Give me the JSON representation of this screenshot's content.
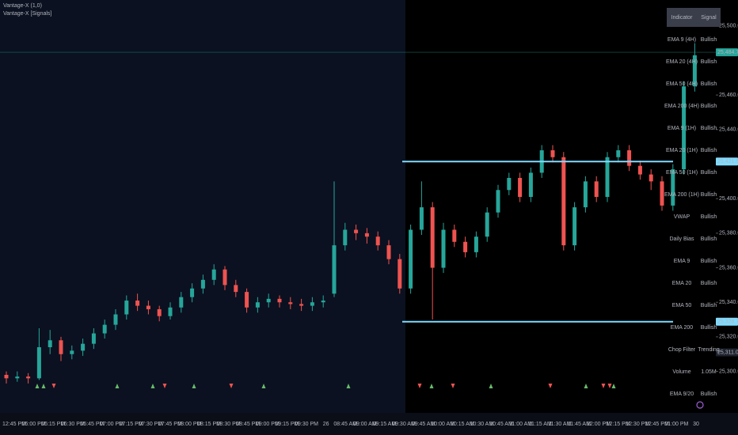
{
  "chart_data": {
    "type": "candlestick",
    "indicator_labels": [
      "Vantage-X (1,0)",
      "Vantage-X [Signals]"
    ],
    "up_color": "#26a69a",
    "down_color": "#ef5350",
    "ylim": [
      25276,
      25515
    ],
    "yticks": [
      {
        "value": 25300,
        "label": "25,300.00"
      },
      {
        "value": 25320,
        "label": "25,320.00"
      },
      {
        "value": 25340,
        "label": "25,340.00"
      },
      {
        "value": 25360,
        "label": "25,360.00"
      },
      {
        "value": 25380,
        "label": "25,380.00"
      },
      {
        "value": 25400,
        "label": "25,400.00"
      },
      {
        "value": 25440,
        "label": "25,440.00"
      },
      {
        "value": 25460,
        "label": "25,460.00"
      },
      {
        "value": 25500,
        "label": "25,500.00"
      }
    ],
    "levels": [
      {
        "value": 25484.75,
        "label": "25,484.75",
        "color": "#26a69a",
        "line": "thin"
      },
      {
        "value": 25421.5,
        "label": "25,421.50",
        "color": "#7fdbff",
        "line": "thick"
      },
      {
        "value": 25328.75,
        "label": "25,328.75",
        "color": "#7fdbff",
        "line": "thick"
      },
      {
        "value": 25311,
        "label": "25,311.00",
        "color": "#1e222d",
        "line": "none"
      }
    ],
    "time_labels": [
      "12:45 PM",
      "06:00 PM",
      "06:15 PM",
      "06:30 PM",
      "06:45 PM",
      "07:00 PM",
      "07:15 PM",
      "07:30 PM",
      "07:45 PM",
      "08:00 PM",
      "08:15 PM",
      "08:30 PM",
      "08:45 PM",
      "09:00 PM",
      "09:15 PM",
      "09:30 PM",
      "26",
      "08:45 AM",
      "09:00 AM",
      "09:15 AM",
      "09:30 AM",
      "09:45 AM",
      "10:00 AM",
      "10:15 AM",
      "10:30 AM",
      "10:45 AM",
      "11:00 AM",
      "11:15 AM",
      "11:30 AM",
      "11:45 AM",
      "12:00 PM",
      "12:15 PM",
      "12:30 PM",
      "12:45 PM",
      "01:00 PM",
      "30"
    ],
    "ohlc": [
      [
        25298,
        25300,
        25293,
        25296
      ],
      [
        25296,
        25300,
        25294,
        25297
      ],
      [
        25297,
        25299,
        25293,
        25296
      ],
      [
        25296,
        25325,
        25295,
        25314
      ],
      [
        25314,
        25324,
        25310,
        25318
      ],
      [
        25318,
        25320,
        25306,
        25310
      ],
      [
        25310,
        25315,
        25307,
        25312
      ],
      [
        25312,
        25319,
        25309,
        25316
      ],
      [
        25316,
        25325,
        25313,
        25322
      ],
      [
        25322,
        25330,
        25319,
        25327
      ],
      [
        25327,
        25336,
        25324,
        25333
      ],
      [
        25333,
        25344,
        25330,
        25341
      ],
      [
        25341,
        25345,
        25335,
        25338
      ],
      [
        25338,
        25341,
        25333,
        25336
      ],
      [
        25336,
        25338,
        25329,
        25332
      ],
      [
        25332,
        25340,
        25330,
        25337
      ],
      [
        25337,
        25346,
        25334,
        25343
      ],
      [
        25343,
        25351,
        25340,
        25348
      ],
      [
        25348,
        25356,
        25345,
        25353
      ],
      [
        25353,
        25362,
        25350,
        25359
      ],
      [
        25359,
        25361,
        25347,
        25350
      ],
      [
        25350,
        25353,
        25343,
        25346
      ],
      [
        25346,
        25348,
        25334,
        25337
      ],
      [
        25337,
        25343,
        25334,
        25340
      ],
      [
        25340,
        25345,
        25337,
        25342
      ],
      [
        25342,
        25344,
        25337,
        25340
      ],
      [
        25340,
        25343,
        25336,
        25339
      ],
      [
        25339,
        25342,
        25335,
        25338
      ],
      [
        25338,
        25343,
        25335,
        25340
      ],
      [
        25340,
        25344,
        25337,
        25341
      ],
      [
        25345,
        25410,
        25343,
        25373
      ],
      [
        25373,
        25386,
        25370,
        25382
      ],
      [
        25382,
        25385,
        25376,
        25380
      ],
      [
        25380,
        25383,
        25374,
        25378
      ],
      [
        25378,
        25381,
        25370,
        25373
      ],
      [
        25373,
        25376,
        25362,
        25365
      ],
      [
        25365,
        25368,
        25345,
        25348
      ],
      [
        25348,
        25385,
        25345,
        25382
      ],
      [
        25382,
        25410,
        25379,
        25395
      ],
      [
        25395,
        25398,
        25330,
        25360
      ],
      [
        25360,
        25386,
        25357,
        25382
      ],
      [
        25382,
        25385,
        25372,
        25375
      ],
      [
        25375,
        25378,
        25366,
        25369
      ],
      [
        25369,
        25381,
        25366,
        25378
      ],
      [
        25378,
        25395,
        25375,
        25392
      ],
      [
        25392,
        25408,
        25389,
        25405
      ],
      [
        25405,
        25415,
        25402,
        25412
      ],
      [
        25412,
        25415,
        25398,
        25401
      ],
      [
        25401,
        25418,
        25398,
        25415
      ],
      [
        25415,
        25431,
        25412,
        25428
      ],
      [
        25428,
        25431,
        25421,
        25424
      ],
      [
        25424,
        25427,
        25370,
        25373
      ],
      [
        25373,
        25398,
        25370,
        25395
      ],
      [
        25395,
        25413,
        25392,
        25410
      ],
      [
        25410,
        25413,
        25398,
        25401
      ],
      [
        25401,
        25427,
        25398,
        25424
      ],
      [
        25424,
        25431,
        25421,
        25428
      ],
      [
        25428,
        25431,
        25416,
        25419
      ],
      [
        25419,
        25422,
        25411,
        25414
      ],
      [
        25414,
        25417,
        25405,
        25410
      ],
      [
        25410,
        25413,
        25393,
        25396
      ],
      [
        25396,
        25420,
        25393,
        25417
      ],
      [
        25417,
        25468,
        25414,
        25465
      ],
      [
        25465,
        25490,
        25462,
        25483
      ]
    ],
    "table": {
      "header": [
        "Indicator",
        "Signal"
      ],
      "rows": [
        [
          "EMA 9 (4H)",
          "Bullish"
        ],
        [
          "EMA 20 (4H)",
          "Bullish"
        ],
        [
          "EMA 50 (4H)",
          "Bullish"
        ],
        [
          "EMA 200 (4H)",
          "Bullish"
        ],
        [
          "EMA 9 (1H)",
          "Bullish"
        ],
        [
          "EMA 20 (1H)",
          "Bullish"
        ],
        [
          "EMA 50 (1H)",
          "Bullish"
        ],
        [
          "EMA 200 (1H)",
          "Bullish"
        ],
        [
          "VWAP",
          "Bullish"
        ],
        [
          "Daily Bias",
          "Bullish"
        ],
        [
          "EMA 9",
          "Bullish"
        ],
        [
          "EMA 20",
          "Bullish"
        ],
        [
          "EMA 50",
          "Bullish"
        ],
        [
          "EMA 200",
          "Bullish"
        ],
        [
          "Chop Filter",
          "Trending"
        ],
        [
          "Volume",
          "1.05M"
        ],
        [
          "EMA 9/20",
          "Bullish"
        ]
      ]
    }
  }
}
